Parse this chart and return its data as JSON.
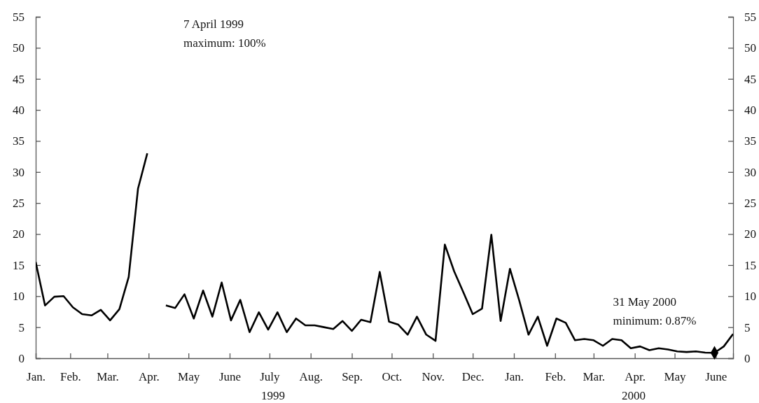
{
  "chart_data": {
    "type": "line",
    "x": [
      "1999-01-06",
      "1999-01-13",
      "1999-01-20",
      "1999-01-27",
      "1999-02-03",
      "1999-02-10",
      "1999-02-17",
      "1999-02-24",
      "1999-03-03",
      "1999-03-10",
      "1999-03-17",
      "1999-03-24",
      "1999-03-31",
      "1999-04-07",
      "1999-04-14",
      "1999-04-21",
      "1999-04-28",
      "1999-05-05",
      "1999-05-12",
      "1999-05-19",
      "1999-05-26",
      "1999-06-02",
      "1999-06-09",
      "1999-06-16",
      "1999-06-23",
      "1999-06-30",
      "1999-07-07",
      "1999-07-14",
      "1999-07-21",
      "1999-07-28",
      "1999-08-04",
      "1999-08-11",
      "1999-08-18",
      "1999-08-25",
      "1999-09-01",
      "1999-09-08",
      "1999-09-15",
      "1999-09-22",
      "1999-09-29",
      "1999-10-06",
      "1999-10-13",
      "1999-10-20",
      "1999-10-27",
      "1999-11-03",
      "1999-11-10",
      "1999-11-17",
      "1999-11-24",
      "1999-12-01",
      "1999-12-08",
      "1999-12-15",
      "1999-12-22",
      "1999-12-29",
      "2000-01-05",
      "2000-01-12",
      "2000-01-19",
      "2000-01-26",
      "2000-02-02",
      "2000-02-09",
      "2000-02-16",
      "2000-02-23",
      "2000-03-01",
      "2000-03-08",
      "2000-03-15",
      "2000-03-22",
      "2000-03-29",
      "2000-04-05",
      "2000-04-12",
      "2000-04-19",
      "2000-04-26",
      "2000-05-03",
      "2000-05-10",
      "2000-05-17",
      "2000-05-24",
      "2000-05-31",
      "2000-06-07",
      "2000-06-14"
    ],
    "series": [
      {
        "color": "#000000",
        "values": [
          15.5,
          8.5,
          9.9,
          10.0,
          8.2,
          7.1,
          6.9,
          7.8,
          6.1,
          7.9,
          13.1,
          27.3,
          33,
          null,
          8.5,
          8.1,
          10.3,
          6.4,
          10.9,
          6.7,
          12.2,
          6.1,
          9.4,
          4.2,
          7.4,
          4.6,
          7.4,
          4.2,
          6.4,
          5.3,
          5.3,
          5.0,
          4.7,
          6.0,
          4.4,
          6.2,
          5.8,
          13.9,
          5.9,
          5.4,
          3.8,
          6.7,
          3.8,
          2.8,
          18.3,
          14.0,
          10.6,
          7.1,
          8.0,
          19.9,
          6.0,
          14.4,
          9.3,
          3.8,
          6.7,
          2.0,
          6.4,
          5.7,
          2.9,
          3.1,
          2.9,
          2.0,
          3.1,
          2.9,
          1.6,
          1.9,
          1.3,
          1.6,
          1.4,
          1.1,
          1.0,
          1.1,
          0.9,
          0.87,
          1.9,
          3.9
        ]
      }
    ],
    "xlim": [
      "1999-01-06",
      "2000-06-14"
    ],
    "xticks": [
      {
        "value": "1999-01-06",
        "label": "Jan."
      },
      {
        "value": "1999-02-01",
        "label": "Feb."
      },
      {
        "value": "1999-03-01",
        "label": "Mar."
      },
      {
        "value": "1999-04-01",
        "label": "Apr."
      },
      {
        "value": "1999-05-01",
        "label": "May"
      },
      {
        "value": "1999-06-01",
        "label": "June"
      },
      {
        "value": "1999-07-01",
        "label": "July"
      },
      {
        "value": "1999-08-01",
        "label": "Aug."
      },
      {
        "value": "1999-09-01",
        "label": "Sep."
      },
      {
        "value": "1999-10-01",
        "label": "Oct."
      },
      {
        "value": "1999-11-01",
        "label": "Nov."
      },
      {
        "value": "1999-12-01",
        "label": "Dec."
      },
      {
        "value": "2000-01-01",
        "label": "Jan."
      },
      {
        "value": "2000-02-01",
        "label": "Feb."
      },
      {
        "value": "2000-03-01",
        "label": "Mar."
      },
      {
        "value": "2000-04-01",
        "label": "Apr."
      },
      {
        "value": "2000-05-01",
        "label": "May"
      },
      {
        "value": "2000-06-01",
        "label": "June"
      }
    ],
    "ylim": [
      0,
      55
    ],
    "yticks": [
      0,
      5,
      10,
      15,
      20,
      25,
      30,
      35,
      40,
      45,
      50,
      55
    ],
    "y2lim": [
      0,
      55
    ],
    "y2ticks": [
      0,
      5,
      10,
      15,
      20,
      25,
      30,
      35,
      40,
      45,
      50,
      55
    ],
    "grid": false,
    "marker": "none",
    "line_style": "solid",
    "annotations": [
      "7 April 1999\nmaximum: 100%",
      {
        "text": "31 May 2000\nminimum: 0.87%",
        "x": "2000-05-31",
        "y": 0.87
      },
      "1999",
      "2000"
    ]
  }
}
